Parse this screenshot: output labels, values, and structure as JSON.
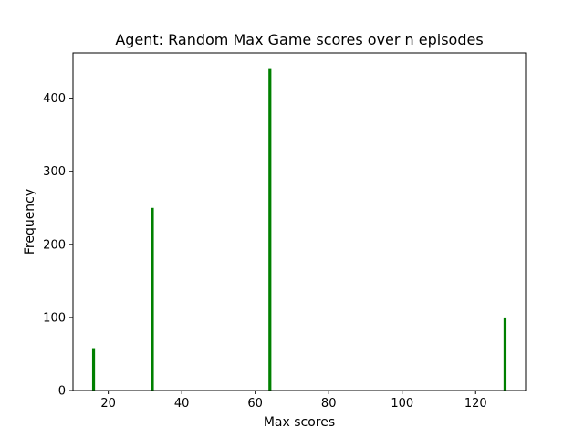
{
  "chart_data": {
    "type": "bar",
    "title": "Agent: Random Max Game scores over n episodes",
    "xlabel": "Max scores",
    "ylabel": "Frequency",
    "xlim": [
      10.4,
      133.6
    ],
    "ylim": [
      0,
      462
    ],
    "xticks": [
      20,
      40,
      60,
      80,
      100,
      120
    ],
    "yticks": [
      0,
      100,
      200,
      300,
      400
    ],
    "grid": false,
    "bar_color": "#008000",
    "bars": [
      {
        "x": 16,
        "y": 58
      },
      {
        "x": 32,
        "y": 250
      },
      {
        "x": 64,
        "y": 440
      },
      {
        "x": 128,
        "y": 100
      }
    ]
  }
}
